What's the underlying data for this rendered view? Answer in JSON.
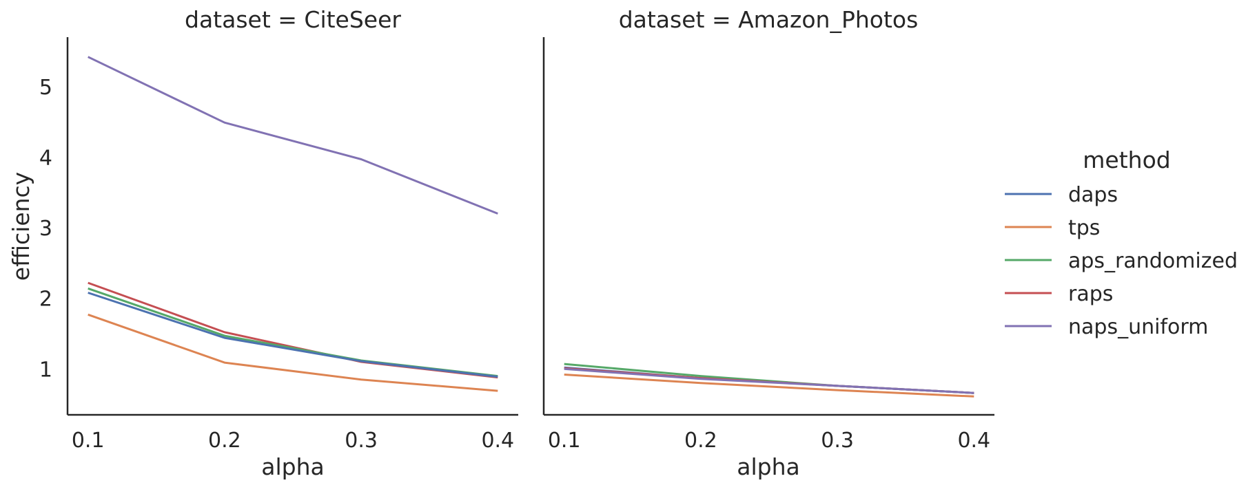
{
  "chart_data": {
    "type": "line",
    "ylabel": "efficiency",
    "xlabel": "alpha",
    "x": [
      0.1,
      0.2,
      0.3,
      0.4
    ],
    "x_ticks": [
      "0.1",
      "0.2",
      "0.3",
      "0.4"
    ],
    "y_ticks": [
      "1",
      "2",
      "3",
      "4",
      "5"
    ],
    "ylim": [
      0.35,
      5.7
    ],
    "xlim": [
      0.085,
      0.415
    ],
    "legend": {
      "title": "method",
      "placement": "right"
    },
    "series_colors": {
      "daps": "#4c72b0",
      "tps": "#dd8452",
      "aps_randomized": "#55a868",
      "raps": "#c44e52",
      "naps_uniform": "#8172b3"
    },
    "facets": [
      {
        "title": "dataset = CiteSeer",
        "series": [
          {
            "name": "naps_uniform",
            "values": [
              5.42,
              4.49,
              3.97,
              3.2
            ]
          },
          {
            "name": "raps",
            "values": [
              2.22,
              1.52,
              1.1,
              0.88
            ]
          },
          {
            "name": "aps_randomized",
            "values": [
              2.14,
              1.47,
              1.12,
              0.9
            ]
          },
          {
            "name": "daps",
            "values": [
              2.08,
              1.44,
              1.11,
              0.89
            ]
          },
          {
            "name": "tps",
            "values": [
              1.77,
              1.09,
              0.85,
              0.69
            ]
          }
        ]
      },
      {
        "title": "dataset = Amazon_Photos",
        "series": [
          {
            "name": "aps_randomized",
            "values": [
              1.07,
              0.9,
              0.76,
              0.66
            ]
          },
          {
            "name": "daps",
            "values": [
              1.02,
              0.87,
              0.76,
              0.66
            ]
          },
          {
            "name": "raps",
            "values": [
              1.01,
              0.87,
              0.76,
              0.66
            ]
          },
          {
            "name": "naps_uniform",
            "values": [
              1.0,
              0.86,
              0.76,
              0.66
            ]
          },
          {
            "name": "tps",
            "values": [
              0.92,
              0.8,
              0.7,
              0.61
            ]
          }
        ]
      }
    ]
  }
}
